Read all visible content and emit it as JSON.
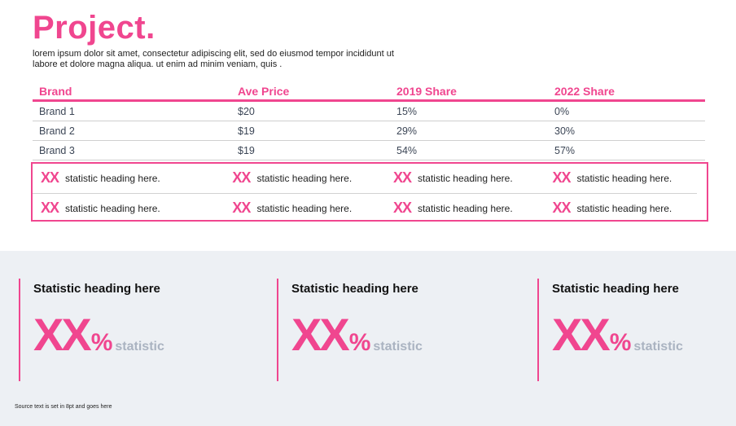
{
  "header": {
    "title": "Project.",
    "intro": "lorem ipsum dolor sit amet, consectetur adipiscing elit, sed do eiusmod tempor incididunt ut labore et dolore magna aliqua. ut enim ad minim veniam, quis ."
  },
  "table": {
    "headers": [
      "Brand",
      "Ave Price",
      "2019 Share",
      "2022 Share"
    ],
    "rows": [
      [
        "Brand 1",
        "$20",
        "15%",
        "0%"
      ],
      [
        "Brand 2",
        "$19",
        "29%",
        "30%"
      ],
      [
        "Brand 3",
        "$19",
        "54%",
        "57%"
      ]
    ]
  },
  "stats_grid": {
    "value": "XX",
    "label": "statistic heading here."
  },
  "stat_columns": [
    {
      "heading": "Statistic heading here",
      "value": "XX",
      "unit": "%",
      "label": "statistic"
    },
    {
      "heading": "Statistic heading here",
      "value": "XX",
      "unit": "%",
      "label": "statistic"
    },
    {
      "heading": "Statistic heading here",
      "value": "XX",
      "unit": "%",
      "label": "statistic"
    }
  ],
  "footer": {
    "source": "Source text is set in 8pt and goes here"
  },
  "colors": {
    "accent": "#f0468f",
    "panel": "#edf0f4",
    "muted": "#aab3c1"
  }
}
